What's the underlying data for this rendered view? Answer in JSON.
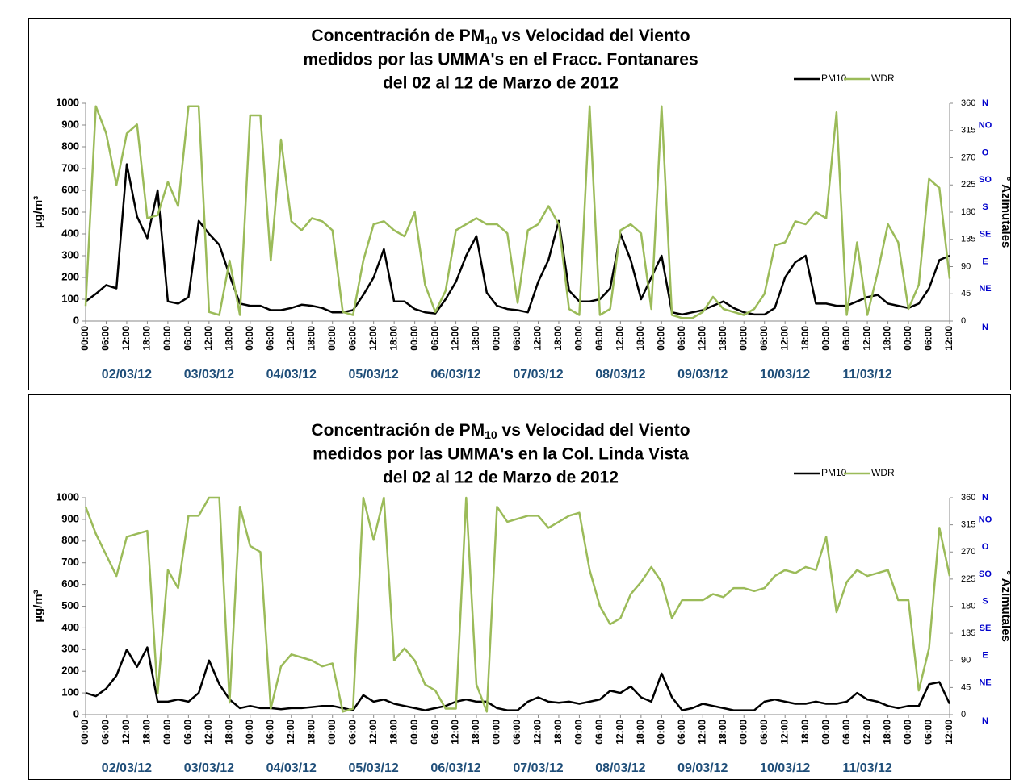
{
  "chart_data": [
    {
      "type": "line",
      "title": [
        "Concentración de PM",
        "10",
        " vs Velocidad del Viento",
        "medidos por las UMMA's en el Fracc. Fontanares",
        "del 02 al 12 de Marzo de 2012"
      ],
      "ylabel": "µg/m³",
      "y2label": "° Azimutales",
      "categories": [
        "00:00",
        null,
        "06:00",
        null,
        "12:00",
        null,
        "18:00",
        null,
        "00:00",
        null,
        "06:00",
        null,
        "12:00",
        null,
        "18:00",
        null,
        "00:00",
        null,
        "06:00",
        null,
        "12:00",
        null,
        "18:00",
        null,
        "00:00",
        null,
        "06:00",
        null,
        "12:00",
        null,
        "18:00",
        null,
        "00:00",
        null,
        "06:00",
        null,
        "12:00",
        null,
        "18:00",
        null,
        "00:00",
        null,
        "06:00",
        null,
        "12:00",
        null,
        "18:00",
        null,
        "00:00",
        null,
        "06:00",
        null,
        "12:00",
        null,
        "18:00",
        null,
        "00:00",
        null,
        "06:00",
        null,
        "12:00",
        null,
        "18:00",
        null,
        "00:00",
        null,
        "06:00",
        null,
        "12:00",
        null,
        "18:00",
        null,
        "00:00",
        null,
        "06:00",
        null,
        "12:00",
        null,
        "18:00",
        null,
        "00:00",
        null,
        "06:00",
        null,
        "12:00"
      ],
      "day_labels": [
        "02/03/12",
        "03/03/12",
        "04/03/12",
        "05/03/12",
        "06/03/12",
        "07/03/12",
        "08/03/12",
        "09/03/12",
        "10/03/12",
        "11/03/12"
      ],
      "direction_labels": [
        "N",
        "NE",
        "E",
        "SE",
        "S",
        "SO",
        "O",
        "NO",
        "N"
      ],
      "series": [
        {
          "name": "PM10",
          "color": "#000000",
          "axis": "y",
          "values": [
            90,
            125,
            165,
            150,
            720,
            480,
            380,
            600,
            90,
            80,
            110,
            460,
            400,
            350,
            210,
            80,
            70,
            70,
            50,
            50,
            60,
            75,
            70,
            60,
            40,
            40,
            50,
            120,
            200,
            330,
            90,
            90,
            55,
            40,
            35,
            100,
            180,
            300,
            390,
            130,
            70,
            55,
            50,
            40,
            180,
            280,
            460,
            140,
            90,
            90,
            100,
            150,
            400,
            280,
            100,
            200,
            300,
            40,
            30,
            40,
            50,
            70,
            90,
            60,
            40,
            30,
            30,
            60,
            200,
            270,
            300,
            80,
            80,
            70,
            70,
            90,
            110,
            120,
            80,
            70,
            60,
            80,
            150,
            280,
            300
          ]
        },
        {
          "name": "WDR",
          "color": "#9bbb59",
          "axis": "y2",
          "values": [
            25,
            355,
            310,
            225,
            310,
            325,
            170,
            175,
            230,
            190,
            355,
            355,
            15,
            10,
            100,
            10,
            340,
            340,
            100,
            300,
            165,
            150,
            170,
            165,
            150,
            15,
            10,
            100,
            160,
            165,
            150,
            140,
            180,
            60,
            15,
            50,
            150,
            160,
            170,
            160,
            160,
            145,
            30,
            150,
            160,
            190,
            160,
            20,
            10,
            355,
            10,
            20,
            150,
            160,
            145,
            20,
            355,
            10,
            5,
            5,
            15,
            40,
            20,
            15,
            10,
            20,
            45,
            125,
            130,
            165,
            160,
            180,
            170,
            345,
            10,
            130,
            10,
            80,
            160,
            130,
            20,
            60,
            235,
            220,
            70
          ]
        }
      ],
      "ylim": [
        0,
        1000
      ],
      "yticks": [
        0,
        100,
        200,
        300,
        400,
        500,
        600,
        700,
        800,
        900,
        1000
      ],
      "y2lim": [
        0,
        360
      ],
      "y2ticks": [
        0,
        45,
        90,
        135,
        180,
        225,
        270,
        315,
        360
      ],
      "grid": false
    },
    {
      "type": "line",
      "title": [
        "Concentración de PM",
        "10",
        " vs Velocidad del Viento",
        "medidos por las UMMA's en la Col. Linda Vista",
        "del 02 al 12 de Marzo de 2012"
      ],
      "ylabel": "µg/m³",
      "y2label": "° Azimutales",
      "categories": [
        "00:00",
        null,
        "06:00",
        null,
        "12:00",
        null,
        "18:00",
        null,
        "00:00",
        null,
        "06:00",
        null,
        "12:00",
        null,
        "18:00",
        null,
        "00:00",
        null,
        "06:00",
        null,
        "12:00",
        null,
        "18:00",
        null,
        "00:00",
        null,
        "06:00",
        null,
        "12:00",
        null,
        "18:00",
        null,
        "00:00",
        null,
        "06:00",
        null,
        "12:00",
        null,
        "18:00",
        null,
        "00:00",
        null,
        "06:00",
        null,
        "12:00",
        null,
        "18:00",
        null,
        "00:00",
        null,
        "06:00",
        null,
        "12:00",
        null,
        "18:00",
        null,
        "00:00",
        null,
        "06:00",
        null,
        "12:00",
        null,
        "18:00",
        null,
        "00:00",
        null,
        "06:00",
        null,
        "12:00",
        null,
        "18:00",
        null,
        "00:00",
        null,
        "06:00",
        null,
        "12:00",
        null,
        "18:00",
        null,
        "00:00",
        null,
        "06:00",
        null,
        "12:00"
      ],
      "day_labels": [
        "02/03/12",
        "03/03/12",
        "04/03/12",
        "05/03/12",
        "06/03/12",
        "07/03/12",
        "08/03/12",
        "09/03/12",
        "10/03/12",
        "11/03/12"
      ],
      "direction_labels": [
        "N",
        "NE",
        "E",
        "SE",
        "S",
        "SO",
        "O",
        "NO",
        "N"
      ],
      "series": [
        {
          "name": "PM10",
          "color": "#000000",
          "axis": "y",
          "values": [
            100,
            85,
            120,
            180,
            300,
            220,
            310,
            60,
            60,
            70,
            60,
            100,
            250,
            140,
            70,
            30,
            40,
            30,
            30,
            25,
            30,
            30,
            35,
            40,
            40,
            30,
            20,
            90,
            60,
            70,
            50,
            40,
            30,
            20,
            30,
            40,
            60,
            70,
            60,
            60,
            30,
            20,
            20,
            60,
            80,
            60,
            55,
            60,
            50,
            60,
            70,
            110,
            100,
            130,
            80,
            60,
            190,
            80,
            20,
            30,
            50,
            40,
            30,
            20,
            20,
            20,
            60,
            70,
            60,
            50,
            50,
            60,
            50,
            50,
            60,
            100,
            70,
            60,
            40,
            30,
            40,
            40,
            140,
            150,
            50
          ]
        },
        {
          "name": "WDR",
          "color": "#9bbb59",
          "axis": "y2",
          "values": [
            345,
            300,
            265,
            230,
            295,
            300,
            305,
            35,
            240,
            210,
            330,
            330,
            360,
            360,
            20,
            345,
            280,
            270,
            10,
            80,
            100,
            95,
            90,
            80,
            85,
            5,
            10,
            360,
            290,
            360,
            90,
            110,
            90,
            50,
            40,
            10,
            10,
            360,
            50,
            5,
            345,
            320,
            325,
            330,
            330,
            310,
            320,
            330,
            335,
            240,
            180,
            150,
            160,
            200,
            220,
            245,
            220,
            160,
            190,
            190,
            190,
            200,
            195,
            210,
            210,
            205,
            210,
            230,
            240,
            235,
            245,
            240,
            295,
            170,
            220,
            240,
            230,
            235,
            240,
            190,
            190,
            40,
            110,
            310,
            230
          ]
        }
      ],
      "ylim": [
        0,
        1000
      ],
      "yticks": [
        0,
        100,
        200,
        300,
        400,
        500,
        600,
        700,
        800,
        900,
        1000
      ],
      "y2lim": [
        0,
        360
      ],
      "y2ticks": [
        0,
        45,
        90,
        135,
        180,
        225,
        270,
        315,
        360
      ],
      "grid": false
    }
  ]
}
